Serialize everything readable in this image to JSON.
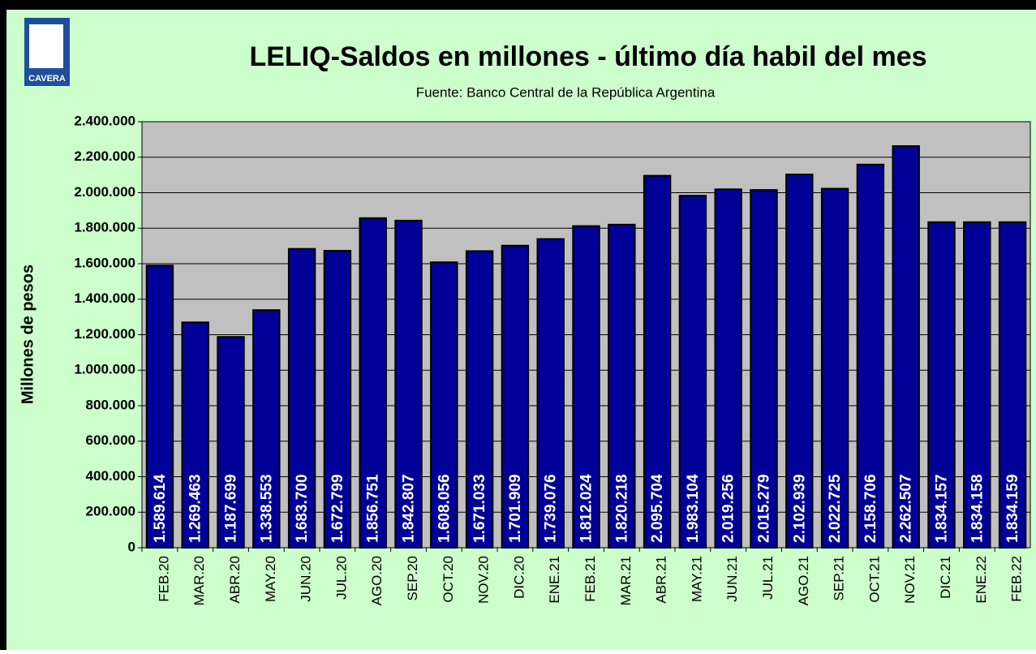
{
  "logo": "CAVERA",
  "chart_data": {
    "type": "bar",
    "title": "LELIQ-Saldos  en millones - último día habil del mes",
    "subtitle": "Fuente: Banco Central de la República Argentina",
    "y_label": "Millones de pesos",
    "categories": [
      "FEB.20",
      "MAR.20",
      "ABR.20",
      "MAY.20",
      "JUN.20",
      "JUL.20",
      "AGO.20",
      "SEP.20",
      "OCT.20",
      "NOV.20",
      "DIC.20",
      "ENE.21",
      "FEB.21",
      "MAR.21",
      "ABR.21",
      "MAY.21",
      "JUN.21",
      "JUL.21",
      "AGO.21",
      "SEP.21",
      "OCT.21",
      "NOV.21",
      "DIC.21",
      "ENE.22",
      "FEB.22"
    ],
    "values": [
      1589614,
      1269463,
      1187699,
      1338553,
      1683700,
      1672799,
      1856751,
      1842807,
      1608056,
      1671033,
      1701909,
      1739076,
      1812024,
      1820218,
      2095704,
      1983104,
      2019256,
      2015279,
      2102939,
      2022725,
      2158706,
      2262507,
      1834157,
      1834158,
      1834159
    ],
    "value_labels": [
      "1.589.614",
      "1.269.463",
      "1.187.699",
      "1.338.553",
      "1.683.700",
      "1.672.799",
      "1.856.751",
      "1.842.807",
      "1.608.056",
      "1.671.033",
      "1.701.909",
      "1.739.076",
      "1.812.024",
      "1.820.218",
      "2.095.704",
      "1.983.104",
      "2.019.256",
      "2.015.279",
      "2.102.939",
      "2.022.725",
      "2.158.706",
      "2.262.507",
      "1.834.157",
      "1.834.158",
      "1.834.159"
    ],
    "color": "#000099",
    "ylim": [
      0,
      2400000
    ],
    "yticks": [
      0,
      {
        "value": 200000,
        "label": "200.000"
      },
      {
        "value": 400000,
        "label": "400.000"
      },
      {
        "value": 600000,
        "label": "600.000"
      },
      {
        "value": 800000,
        "label": "800.000"
      },
      {
        "value": 1000000,
        "label": "1.000.000"
      },
      {
        "value": 1200000,
        "label": "1.200.000"
      },
      {
        "value": 1400000,
        "label": "1.400.000"
      },
      {
        "value": 1600000,
        "label": "1.600.000"
      },
      {
        "value": 1800000,
        "label": "1.800.000"
      },
      {
        "value": 2000000,
        "label": "2.000.000"
      },
      {
        "value": 2200000,
        "label": "2.200.000"
      },
      {
        "value": 2400000,
        "label": "2.400.000"
      }
    ],
    "grid": true
  }
}
